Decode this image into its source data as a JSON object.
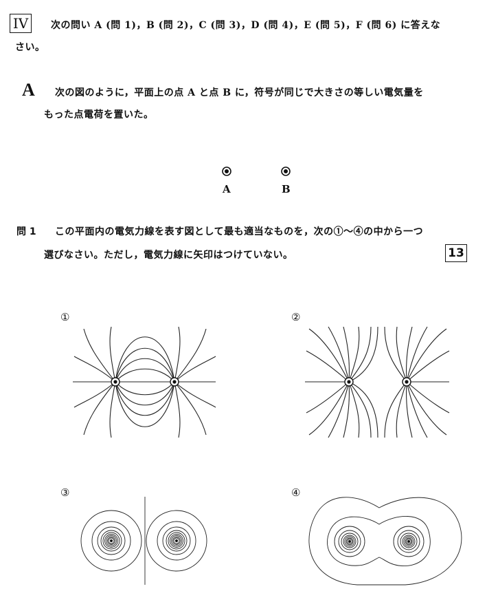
{
  "header": {
    "roman": "IV",
    "intro_line1": "次の問い A (問 1)，B (問 2)，C (問 3)，D (問 4)，E (問 5)，F (問 6) に答えな",
    "intro_line2": "さい。"
  },
  "partA": {
    "label": "A",
    "text_line1": "次の図のように，平面上の点 A と点 B に，符号が同じで大きさの等しい電気量を",
    "text_line2": "もった点電荷を置いた。"
  },
  "points": {
    "a_label": "A",
    "b_label": "B"
  },
  "question1": {
    "number": "問 1",
    "text_line1": "この平面内の電気力線を表す図として最も適当なものを，次の①～④の中から一つ",
    "text_line2": "選びなさい。ただし，電気力線に矢印はつけていない。",
    "answer_box": "13"
  },
  "options": [
    {
      "label": "①"
    },
    {
      "label": "②"
    },
    {
      "label": "③"
    },
    {
      "label": "④"
    }
  ]
}
